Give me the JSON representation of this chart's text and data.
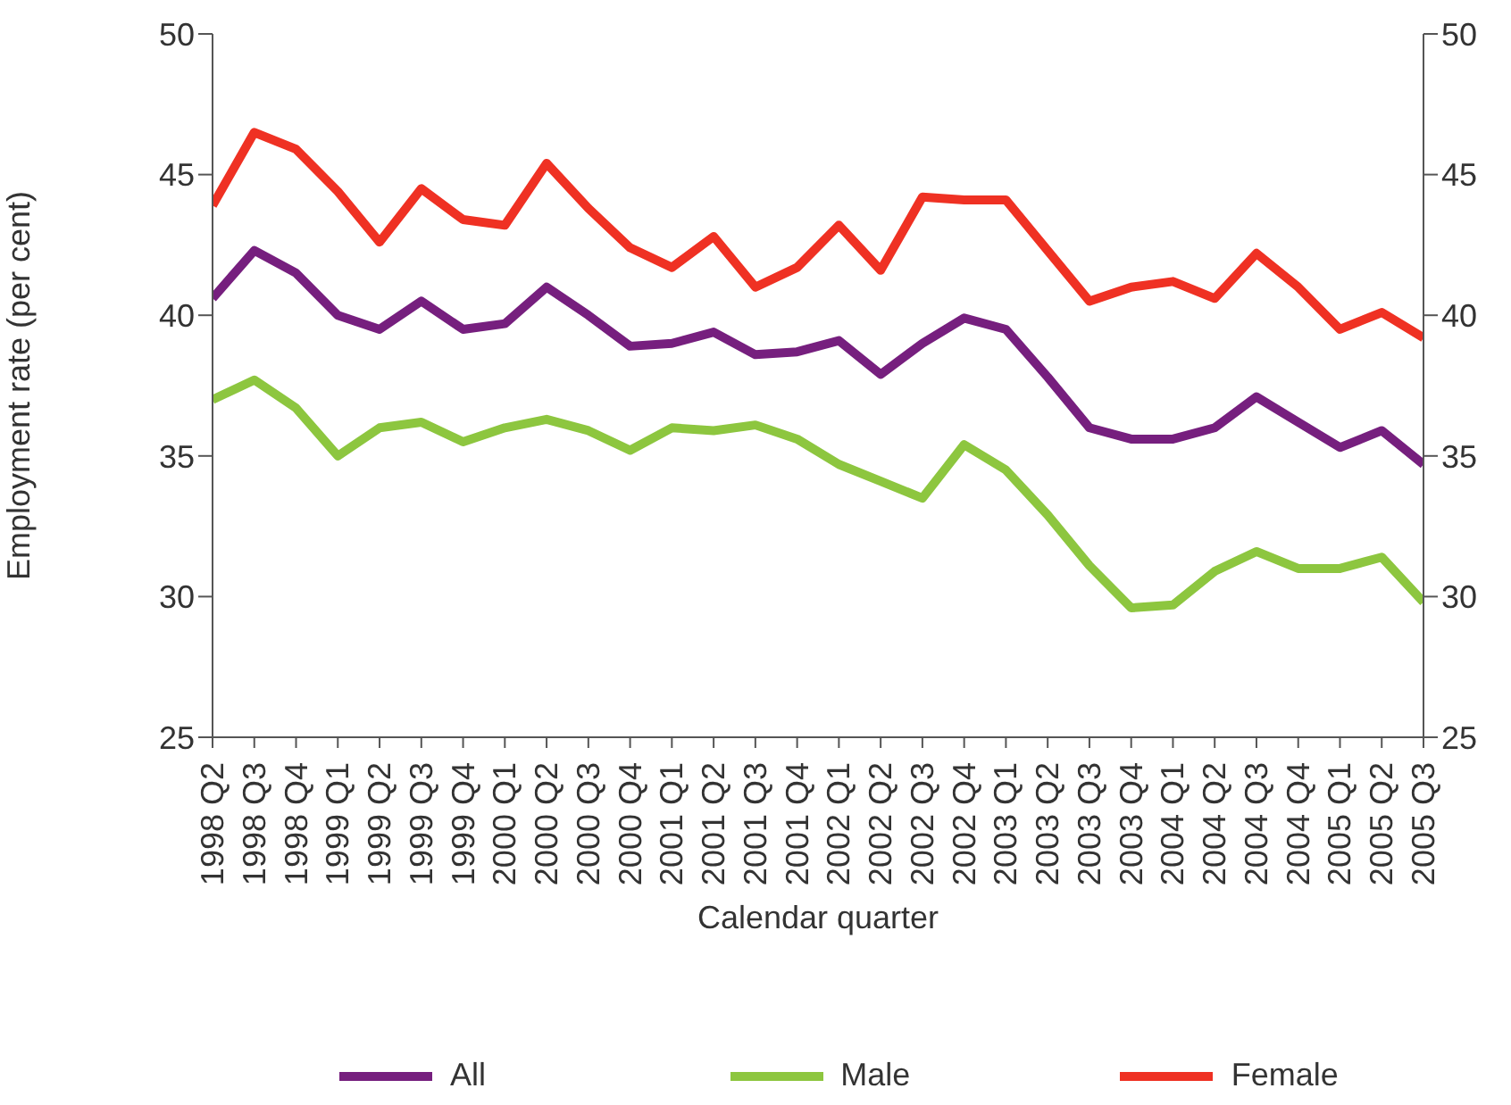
{
  "chart_data": {
    "type": "line",
    "xlabel": "Calendar quarter",
    "ylabel": "Employment rate (per cent)",
    "categories": [
      "1998 Q2",
      "1998 Q3",
      "1998 Q4",
      "1999 Q1",
      "1999 Q2",
      "1999 Q3",
      "1999 Q4",
      "2000 Q1",
      "2000 Q2",
      "2000 Q3",
      "2000 Q4",
      "2001 Q1",
      "2001 Q2",
      "2001 Q3",
      "2001 Q4",
      "2002 Q1",
      "2002 Q2",
      "2002 Q3",
      "2002 Q4",
      "2003 Q1",
      "2003 Q2",
      "2003 Q3",
      "2003 Q4",
      "2004 Q1",
      "2004 Q2",
      "2004 Q3",
      "2004 Q4",
      "2005 Q1",
      "2005 Q2",
      "2005 Q3"
    ],
    "series": [
      {
        "name": "All",
        "color": "#761f7e",
        "values": [
          40.6,
          42.3,
          41.5,
          40.0,
          39.5,
          40.5,
          39.5,
          39.7,
          41.0,
          40.0,
          38.9,
          39.0,
          39.4,
          38.6,
          38.7,
          39.1,
          37.9,
          39.0,
          39.9,
          39.5,
          37.8,
          36.0,
          35.6,
          35.6,
          36.0,
          37.1,
          36.2,
          35.3,
          35.9,
          34.7
        ]
      },
      {
        "name": "Male",
        "color": "#8dc63f",
        "values": [
          37.0,
          37.7,
          36.7,
          35.0,
          36.0,
          36.2,
          35.5,
          36.0,
          36.3,
          35.9,
          35.2,
          36.0,
          35.9,
          36.1,
          35.6,
          34.7,
          34.1,
          33.5,
          35.4,
          34.5,
          32.9,
          31.1,
          29.6,
          29.7,
          30.9,
          31.6,
          31.0,
          31.0,
          31.4,
          29.8
        ]
      },
      {
        "name": "Female",
        "color": "#ef3123",
        "values": [
          43.9,
          46.5,
          45.9,
          44.4,
          42.6,
          44.5,
          43.4,
          43.2,
          45.4,
          43.8,
          42.4,
          41.7,
          42.8,
          41.0,
          41.7,
          43.2,
          41.6,
          44.2,
          44.1,
          44.1,
          42.3,
          40.5,
          41.0,
          41.2,
          40.6,
          42.2,
          41.0,
          39.5,
          40.1,
          39.2
        ]
      }
    ],
    "ylim": [
      25,
      50
    ],
    "yticks": [
      25,
      30,
      35,
      40,
      45,
      50
    ],
    "y2lim": [
      25,
      50
    ],
    "y2ticks": [
      25,
      30,
      35,
      40,
      45,
      50
    ],
    "grid": false,
    "legend": "bottom",
    "marker": "none",
    "line_style": "solid"
  }
}
